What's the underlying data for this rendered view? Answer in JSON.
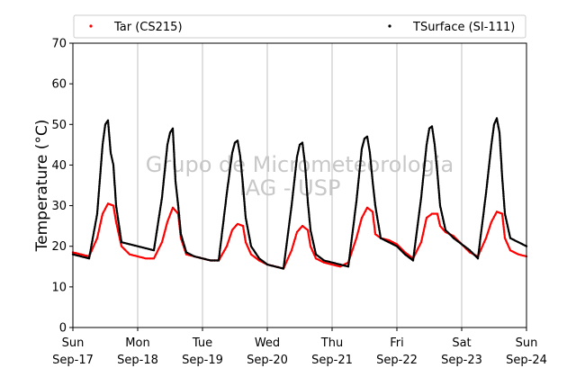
{
  "chart_data": {
    "type": "scatter",
    "title": "",
    "xlabel": "",
    "ylabel": "Temperature (°C)",
    "x_range": [
      "2017-09-17T00:00",
      "2017-09-24T00:00"
    ],
    "ylim": [
      0,
      70
    ],
    "yticks": [
      0,
      10,
      20,
      30,
      40,
      50,
      60,
      70
    ],
    "xticks": [
      {
        "day": "Sun",
        "date": "Sep-17"
      },
      {
        "day": "Mon",
        "date": "Sep-18"
      },
      {
        "day": "Tue",
        "date": "Sep-19"
      },
      {
        "day": "Wed",
        "date": "Sep-20"
      },
      {
        "day": "Thu",
        "date": "Sep-21"
      },
      {
        "day": "Fri",
        "date": "Sep-22"
      },
      {
        "day": "Sat",
        "date": "Sep-23"
      },
      {
        "day": "Sun",
        "date": "Sep-24"
      }
    ],
    "grid": "vertical",
    "legend_position": "top",
    "watermark": [
      "Grupo de Micrometeorologia",
      "IAG - USP"
    ],
    "series": [
      {
        "name": "Tar (CS215)",
        "color": "#ff0000",
        "x": [
          "2017-09-17T00:00",
          "2017-09-17T03:00",
          "2017-09-17T06:00",
          "2017-09-17T09:00",
          "2017-09-17T11:00",
          "2017-09-17T13:00",
          "2017-09-17T15:00",
          "2017-09-17T16:00",
          "2017-09-17T18:00",
          "2017-09-17T21:00",
          "2017-09-18T00:00",
          "2017-09-18T03:00",
          "2017-09-18T06:00",
          "2017-09-18T09:00",
          "2017-09-18T11:00",
          "2017-09-18T13:00",
          "2017-09-18T15:00",
          "2017-09-18T16:00",
          "2017-09-18T18:00",
          "2017-09-18T21:00",
          "2017-09-19T00:00",
          "2017-09-19T03:00",
          "2017-09-19T06:00",
          "2017-09-19T09:00",
          "2017-09-19T11:00",
          "2017-09-19T13:00",
          "2017-09-19T15:00",
          "2017-09-19T16:00",
          "2017-09-19T18:00",
          "2017-09-19T21:00",
          "2017-09-20T00:00",
          "2017-09-20T03:00",
          "2017-09-20T06:00",
          "2017-09-20T09:00",
          "2017-09-20T11:00",
          "2017-09-20T13:00",
          "2017-09-20T15:00",
          "2017-09-20T16:00",
          "2017-09-20T18:00",
          "2017-09-20T21:00",
          "2017-09-21T00:00",
          "2017-09-21T03:00",
          "2017-09-21T06:00",
          "2017-09-21T09:00",
          "2017-09-21T11:00",
          "2017-09-21T13:00",
          "2017-09-21T15:00",
          "2017-09-21T16:00",
          "2017-09-21T18:00",
          "2017-09-21T21:00",
          "2017-09-22T00:00",
          "2017-09-22T03:00",
          "2017-09-22T06:00",
          "2017-09-22T09:00",
          "2017-09-22T11:00",
          "2017-09-22T13:00",
          "2017-09-22T15:00",
          "2017-09-22T16:00",
          "2017-09-22T18:00",
          "2017-09-22T21:00",
          "2017-09-23T00:00",
          "2017-09-23T03:00",
          "2017-09-23T06:00",
          "2017-09-23T09:00",
          "2017-09-23T11:00",
          "2017-09-23T13:00",
          "2017-09-23T15:00",
          "2017-09-23T16:00",
          "2017-09-23T18:00",
          "2017-09-23T21:00",
          "2017-09-24T00:00"
        ],
        "y": [
          18.5,
          18.0,
          17.5,
          22.0,
          28.0,
          30.5,
          30.0,
          26.0,
          20.0,
          18.0,
          17.5,
          17.0,
          17.0,
          21.0,
          26.0,
          29.5,
          28.0,
          22.0,
          18.0,
          17.5,
          17.0,
          16.5,
          16.5,
          20.0,
          24.0,
          25.5,
          25.0,
          21.0,
          18.0,
          16.5,
          15.5,
          15.0,
          14.5,
          19.0,
          23.5,
          25.0,
          24.0,
          20.0,
          17.0,
          16.0,
          15.5,
          15.0,
          16.0,
          22.0,
          27.0,
          29.5,
          28.5,
          23.0,
          22.0,
          21.5,
          20.5,
          18.5,
          17.0,
          21.0,
          27.0,
          28.0,
          28.0,
          25.0,
          23.5,
          22.5,
          20.5,
          18.5,
          17.5,
          22.0,
          26.0,
          28.5,
          28.0,
          22.0,
          19.0,
          18.0,
          17.5
        ]
      },
      {
        "name": "TSurface (SI-111)",
        "color": "#000000",
        "x": [
          "2017-09-17T00:00",
          "2017-09-17T03:00",
          "2017-09-17T06:00",
          "2017-09-17T09:00",
          "2017-09-17T11:00",
          "2017-09-17T12:00",
          "2017-09-17T13:00",
          "2017-09-17T14:00",
          "2017-09-17T15:00",
          "2017-09-17T16:00",
          "2017-09-17T18:00",
          "2017-09-17T21:00",
          "2017-09-18T00:00",
          "2017-09-18T03:00",
          "2017-09-18T06:00",
          "2017-09-18T09:00",
          "2017-09-18T11:00",
          "2017-09-18T12:00",
          "2017-09-18T13:00",
          "2017-09-18T14:00",
          "2017-09-18T15:00",
          "2017-09-18T16:00",
          "2017-09-18T18:00",
          "2017-09-18T21:00",
          "2017-09-19T00:00",
          "2017-09-19T03:00",
          "2017-09-19T06:00",
          "2017-09-19T09:00",
          "2017-09-19T11:00",
          "2017-09-19T12:00",
          "2017-09-19T13:00",
          "2017-09-19T14:00",
          "2017-09-19T15:00",
          "2017-09-19T16:00",
          "2017-09-19T18:00",
          "2017-09-19T21:00",
          "2017-09-20T00:00",
          "2017-09-20T03:00",
          "2017-09-20T06:00",
          "2017-09-20T09:00",
          "2017-09-20T11:00",
          "2017-09-20T12:00",
          "2017-09-20T13:00",
          "2017-09-20T14:00",
          "2017-09-20T15:00",
          "2017-09-20T16:00",
          "2017-09-20T18:00",
          "2017-09-20T21:00",
          "2017-09-21T00:00",
          "2017-09-21T03:00",
          "2017-09-21T06:00",
          "2017-09-21T09:00",
          "2017-09-21T11:00",
          "2017-09-21T12:00",
          "2017-09-21T13:00",
          "2017-09-21T14:00",
          "2017-09-21T15:00",
          "2017-09-21T16:00",
          "2017-09-21T18:00",
          "2017-09-21T21:00",
          "2017-09-22T00:00",
          "2017-09-22T03:00",
          "2017-09-22T06:00",
          "2017-09-22T09:00",
          "2017-09-22T11:00",
          "2017-09-22T12:00",
          "2017-09-22T13:00",
          "2017-09-22T14:00",
          "2017-09-22T15:00",
          "2017-09-22T16:00",
          "2017-09-22T18:00",
          "2017-09-22T21:00",
          "2017-09-23T00:00",
          "2017-09-23T03:00",
          "2017-09-23T06:00",
          "2017-09-23T09:00",
          "2017-09-23T11:00",
          "2017-09-23T12:00",
          "2017-09-23T13:00",
          "2017-09-23T14:00",
          "2017-09-23T15:00",
          "2017-09-23T16:00",
          "2017-09-23T18:00",
          "2017-09-23T21:00",
          "2017-09-24T00:00"
        ],
        "y": [
          18.0,
          17.5,
          17.0,
          28.0,
          45.0,
          50.0,
          51.0,
          43.0,
          40.0,
          30.0,
          21.0,
          20.5,
          20.0,
          19.5,
          19.0,
          32.0,
          45.0,
          48.0,
          49.0,
          36.0,
          30.0,
          23.0,
          18.5,
          17.5,
          17.0,
          16.5,
          16.5,
          33.0,
          43.0,
          45.5,
          46.0,
          42.0,
          35.0,
          27.0,
          20.0,
          17.0,
          15.5,
          15.0,
          14.5,
          30.0,
          42.0,
          45.0,
          45.5,
          40.0,
          31.0,
          24.0,
          18.0,
          16.5,
          16.0,
          15.5,
          15.0,
          31.0,
          44.0,
          46.5,
          47.0,
          43.0,
          36.0,
          30.0,
          22.0,
          21.0,
          20.0,
          18.0,
          16.5,
          32.0,
          45.0,
          49.0,
          49.5,
          45.0,
          38.0,
          30.0,
          24.0,
          22.0,
          20.5,
          19.0,
          17.0,
          33.0,
          45.0,
          50.0,
          51.5,
          48.0,
          37.0,
          28.0,
          22.0,
          21.0,
          20.0
        ]
      }
    ]
  }
}
